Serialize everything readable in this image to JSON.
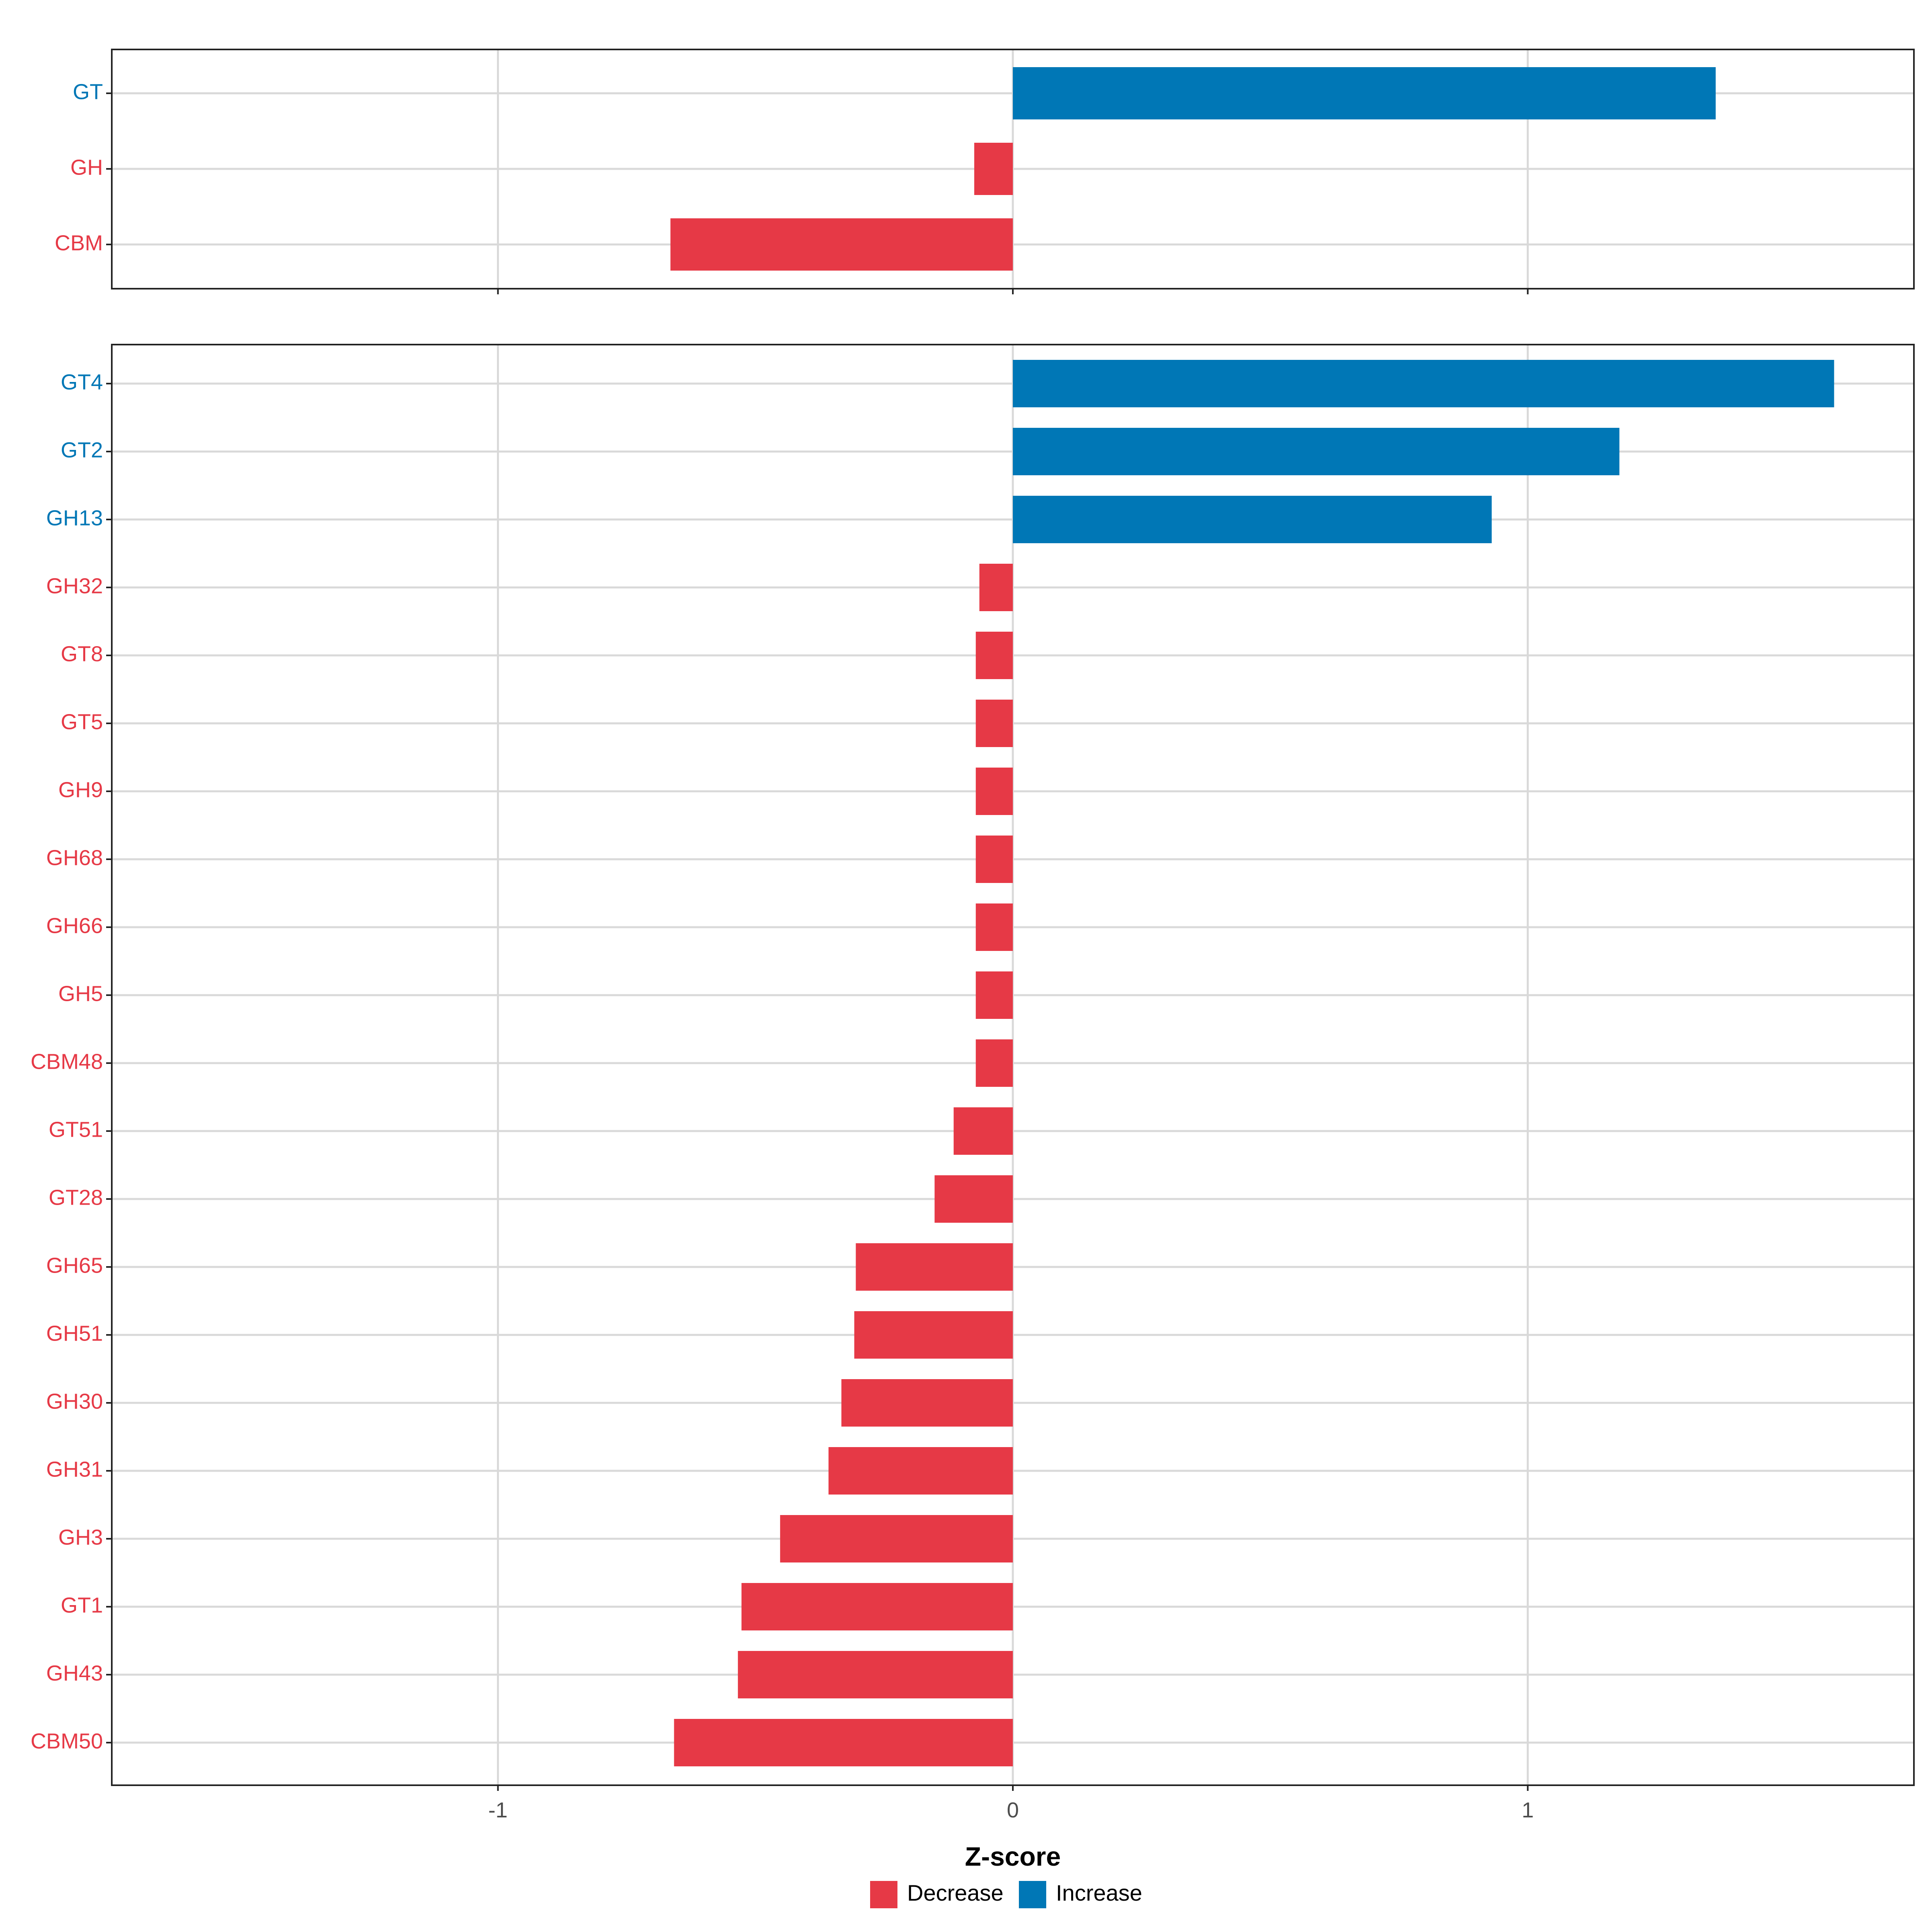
{
  "chart_data": [
    {
      "type": "bar",
      "orientation": "horizontal",
      "categories": [
        "GT",
        "GH",
        "CBM"
      ],
      "values": [
        1.365,
        -0.075,
        -0.665
      ],
      "directions": [
        "Increase",
        "Decrease",
        "Decrease"
      ],
      "xlim": [
        -1.75,
        1.75
      ],
      "xticks": [
        "-1",
        "0",
        "1"
      ],
      "grid": true
    },
    {
      "type": "bar",
      "orientation": "horizontal",
      "categories": [
        "GT4",
        "GT2",
        "GH13",
        "GH32",
        "GT8",
        "GT5",
        "GH9",
        "GH68",
        "GH66",
        "GH5",
        "CBM48",
        "GT51",
        "GT28",
        "GH65",
        "GH51",
        "GH30",
        "GH31",
        "GH3",
        "GT1",
        "GH43",
        "CBM50"
      ],
      "values": [
        1.595,
        1.178,
        0.93,
        -0.065,
        -0.072,
        -0.072,
        -0.072,
        -0.072,
        -0.072,
        -0.072,
        -0.072,
        -0.115,
        -0.152,
        -0.305,
        -0.308,
        -0.333,
        -0.358,
        -0.452,
        -0.527,
        -0.534,
        -0.658
      ],
      "directions": [
        "Increase",
        "Increase",
        "Increase",
        "Decrease",
        "Decrease",
        "Decrease",
        "Decrease",
        "Decrease",
        "Decrease",
        "Decrease",
        "Decrease",
        "Decrease",
        "Decrease",
        "Decrease",
        "Decrease",
        "Decrease",
        "Decrease",
        "Decrease",
        "Decrease",
        "Decrease",
        "Decrease"
      ],
      "xlim": [
        -1.75,
        1.75
      ],
      "xticks": [
        "-1",
        "0",
        "1"
      ],
      "xlabel": "Z-score",
      "grid": true
    }
  ],
  "legend": {
    "placement": "bottom",
    "items": [
      {
        "label": "Decrease",
        "color": "#e63946"
      },
      {
        "label": "Increase",
        "color": "#0077b6"
      }
    ]
  },
  "colors": {
    "Decrease": "#e63946",
    "Increase": "#0077b6"
  }
}
